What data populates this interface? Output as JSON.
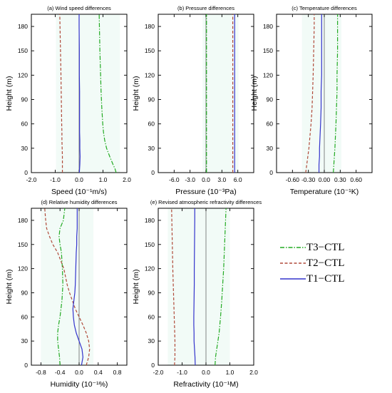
{
  "styles": {
    "T3": {
      "color": "#22aa22",
      "dash": "6 2 1.5 2"
    },
    "T2": {
      "color": "#b04a3a",
      "dash": "4 2.5"
    },
    "T1": {
      "color": "#3333cc",
      "dash": ""
    },
    "zero_color": "#777777",
    "tint_color": "#e8f7f0"
  },
  "legend": [
    "T3−CTL",
    "T2−CTL",
    "T1−CTL"
  ],
  "chart_data": [
    {
      "type": "line",
      "title": "(a) Wind speed differences",
      "xlabel": "Speed (10⁻¹m/s)",
      "ylabel": "Height (m)",
      "xlim": [
        -2.0,
        2.0
      ],
      "xticks": [
        -2.0,
        -1.0,
        0.0,
        1.0,
        2.0
      ],
      "xtick_labels": [
        "-2.0",
        "-1.0",
        "0.0",
        "1.0",
        "2.0"
      ],
      "ylim": [
        0,
        195
      ],
      "yticks": [
        0,
        30,
        60,
        90,
        120,
        150,
        180
      ],
      "y": [
        0,
        5,
        10,
        20,
        30,
        40,
        50,
        60,
        80,
        100,
        120,
        150,
        180,
        195
      ],
      "series": [
        {
          "name": "T3−CTL",
          "values": [
            1.55,
            1.5,
            1.42,
            1.28,
            1.15,
            1.07,
            1.02,
            0.99,
            0.95,
            0.92,
            0.9,
            0.87,
            0.85,
            0.84
          ]
        },
        {
          "name": "T2−CTL",
          "values": [
            -0.7,
            -0.7,
            -0.7,
            -0.7,
            -0.71,
            -0.72,
            -0.72,
            -0.73,
            -0.74,
            -0.75,
            -0.76,
            -0.78,
            -0.8,
            -0.81
          ]
        },
        {
          "name": "T1−CTL",
          "values": [
            0.01,
            0.02,
            0.03,
            0.04,
            0.03,
            0.03,
            0.02,
            0.02,
            0.02,
            0.02,
            0.01,
            0.01,
            0.0,
            0.0
          ]
        }
      ]
    },
    {
      "type": "line",
      "title": "(b) Pressure differences",
      "xlabel": "Pressure (10⁻³Pa)",
      "ylabel": "Height (m)",
      "xlim": [
        -9.0,
        9.0
      ],
      "xticks": [
        -6.0,
        -3.0,
        0.0,
        3.0,
        6.0
      ],
      "xtick_labels": [
        "-6.0",
        "-3.0",
        "0.0",
        "3.0",
        "6.0"
      ],
      "ylim": [
        0,
        195
      ],
      "yticks": [
        0,
        30,
        60,
        90,
        120,
        150,
        180
      ],
      "y": [
        0,
        195
      ],
      "series": [
        {
          "name": "T3−CTL",
          "values": [
            0.1,
            0.1
          ]
        },
        {
          "name": "T2−CTL",
          "values": [
            5.05,
            5.05
          ]
        },
        {
          "name": "T1−CTL",
          "values": [
            5.4,
            5.4
          ]
        }
      ]
    },
    {
      "type": "line",
      "title": "(c) Temperature differences",
      "xlabel": "Temperature (10⁻¹K)",
      "ylabel": "Height (m)",
      "xlim": [
        -0.9,
        0.9
      ],
      "xticks": [
        -0.6,
        -0.3,
        0.0,
        0.3,
        0.6
      ],
      "xtick_labels": [
        "-0.60",
        "-0.30",
        "0.00",
        "0.30",
        "0.60"
      ],
      "ylim": [
        0,
        195
      ],
      "yticks": [
        0,
        30,
        60,
        90,
        120,
        150,
        180
      ],
      "y": [
        0,
        10,
        20,
        30,
        45,
        60,
        80,
        100,
        120,
        150,
        180,
        195
      ],
      "series": [
        {
          "name": "T3−CTL",
          "values": [
            0.17,
            0.18,
            0.19,
            0.2,
            0.21,
            0.22,
            0.23,
            0.24,
            0.24,
            0.25,
            0.25,
            0.25
          ]
        },
        {
          "name": "T2−CTL",
          "values": [
            -0.35,
            -0.33,
            -0.31,
            -0.29,
            -0.27,
            -0.25,
            -0.23,
            -0.22,
            -0.21,
            -0.2,
            -0.19,
            -0.19
          ]
        },
        {
          "name": "T1−CTL",
          "values": [
            -0.1,
            -0.1,
            -0.09,
            -0.09,
            -0.08,
            -0.07,
            -0.06,
            -0.06,
            -0.05,
            -0.05,
            -0.05,
            -0.05
          ]
        }
      ]
    },
    {
      "type": "line",
      "title": "(d) Relative humidity differences",
      "xlabel": "Humidity (10⁻¹%)",
      "ylabel": "Height (m)",
      "xlim": [
        -1.0,
        1.0
      ],
      "xticks": [
        -0.8,
        -0.4,
        0.0,
        0.4,
        0.8
      ],
      "xtick_labels": [
        "-0.8",
        "-0.4",
        "0.0",
        "0.4",
        "0.8"
      ],
      "ylim": [
        0,
        195
      ],
      "yticks": [
        0,
        30,
        60,
        90,
        120,
        150,
        180
      ],
      "y": [
        0,
        10,
        20,
        30,
        40,
        50,
        60,
        70,
        80,
        90,
        100,
        120,
        140,
        150,
        160,
        170,
        180,
        195
      ],
      "series": [
        {
          "name": "T3−CTL",
          "values": [
            -0.4,
            -0.41,
            -0.43,
            -0.45,
            -0.45,
            -0.43,
            -0.4,
            -0.38,
            -0.36,
            -0.35,
            -0.34,
            -0.35,
            -0.37,
            -0.4,
            -0.42,
            -0.4,
            -0.33,
            -0.3
          ]
        },
        {
          "name": "T2−CTL",
          "values": [
            0.15,
            0.2,
            0.22,
            0.2,
            0.15,
            0.08,
            0.0,
            -0.08,
            -0.14,
            -0.2,
            -0.25,
            -0.32,
            -0.45,
            -0.55,
            -0.62,
            -0.68,
            -0.7,
            -0.72
          ]
        },
        {
          "name": "T1−CTL",
          "values": [
            0.05,
            0.08,
            0.06,
            0.0,
            -0.06,
            -0.1,
            -0.12,
            -0.13,
            -0.11,
            -0.09,
            -0.08,
            -0.07,
            -0.06,
            -0.05,
            -0.05,
            -0.04,
            -0.04,
            -0.04
          ]
        }
      ]
    },
    {
      "type": "line",
      "title": "(e) Revised atmospheric refractivity differences",
      "xlabel": "Refractivity (10⁻¹M)",
      "ylabel": "Height (m)",
      "xlim": [
        -2.0,
        2.0
      ],
      "xticks": [
        -2.0,
        -1.0,
        0.0,
        1.0,
        2.0
      ],
      "xtick_labels": [
        "-2.0",
        "-1.0",
        "0.0",
        "1.0",
        "2.0"
      ],
      "ylim": [
        0,
        195
      ],
      "yticks": [
        0,
        30,
        60,
        90,
        120,
        150,
        180
      ],
      "y": [
        0,
        10,
        20,
        30,
        40,
        50,
        60,
        80,
        100,
        120,
        150,
        180,
        195
      ],
      "series": [
        {
          "name": "T3−CTL",
          "values": [
            0.38,
            0.4,
            0.45,
            0.5,
            0.55,
            0.58,
            0.61,
            0.66,
            0.7,
            0.74,
            0.78,
            0.82,
            0.84
          ]
        },
        {
          "name": "T2−CTL",
          "values": [
            -1.32,
            -1.3,
            -1.3,
            -1.3,
            -1.31,
            -1.32,
            -1.33,
            -1.35,
            -1.37,
            -1.39,
            -1.41,
            -1.43,
            -1.44
          ]
        },
        {
          "name": "T1−CTL",
          "values": [
            -0.45,
            -0.46,
            -0.48,
            -0.5,
            -0.5,
            -0.51,
            -0.51,
            -0.5,
            -0.49,
            -0.49,
            -0.48,
            -0.47,
            -0.47
          ]
        }
      ]
    }
  ]
}
